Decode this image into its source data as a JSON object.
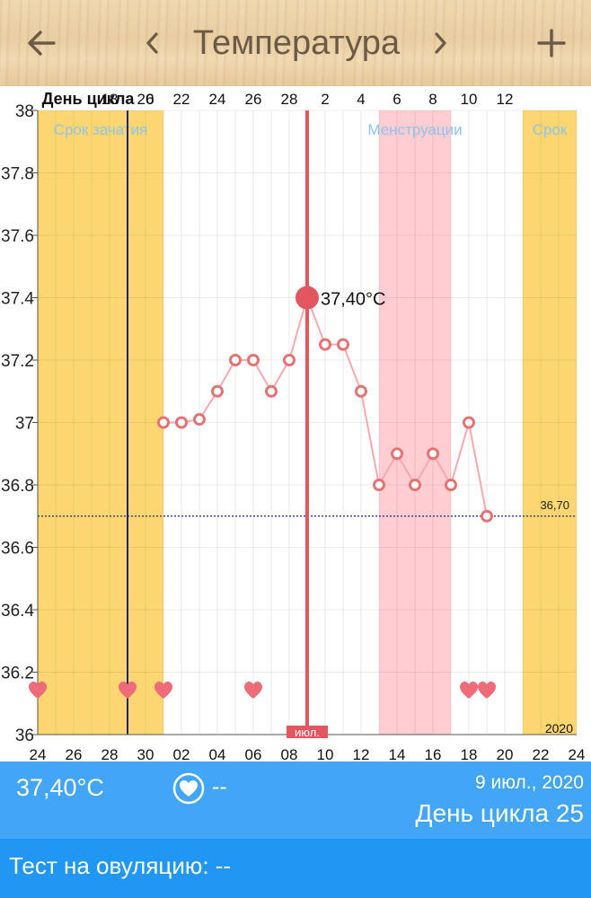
{
  "header": {
    "title": "Температура",
    "back_icon": "arrow-left-icon",
    "prev_icon": "chevron-left-icon",
    "next_icon": "chevron-right-icon",
    "add_icon": "plus-icon"
  },
  "colors": {
    "fertile": "#fcd670",
    "menstruation": "#ffcdd2",
    "line": "#f8a9b0",
    "point": "#e57373",
    "selected": "#e25660",
    "ovulation_line": "#1a237e",
    "coverline": "#1a237e",
    "info_bar": "#42a5f5",
    "test_bar": "#2196f3"
  },
  "chart_data": {
    "type": "line",
    "x_start_date": "2020-06-24",
    "cycle_day_label": "День цикла",
    "cycle_day_ticks": [
      "6",
      "18",
      "20",
      "22",
      "24",
      "26",
      "28",
      "2",
      "4",
      "6",
      "8",
      "10",
      "12"
    ],
    "date_ticks": [
      "24",
      "26",
      "28",
      "30",
      "02",
      "04",
      "06",
      "08",
      "10",
      "12",
      "14",
      "16",
      "18",
      "20",
      "22",
      "24"
    ],
    "month_label": "июл.",
    "year_label": "2020",
    "ylim": [
      36,
      38
    ],
    "y_ticks": [
      "36",
      "36.2",
      "36.4",
      "36.6",
      "36.8",
      "37",
      "37.2",
      "37.4",
      "37.6",
      "37.8",
      "38"
    ],
    "series": [
      {
        "x": [
          "2020-07-01",
          "2020-07-02",
          "2020-07-03",
          "2020-07-04",
          "2020-07-05",
          "2020-07-06",
          "2020-07-07",
          "2020-07-08",
          "2020-07-09",
          "2020-07-10",
          "2020-07-11",
          "2020-07-12",
          "2020-07-13",
          "2020-07-14",
          "2020-07-15",
          "2020-07-16",
          "2020-07-17",
          "2020-07-18",
          "2020-07-19"
        ],
        "values": [
          37.0,
          37.0,
          37.01,
          37.1,
          37.2,
          37.2,
          37.1,
          37.2,
          37.4,
          37.25,
          37.25,
          37.1,
          36.8,
          36.9,
          36.8,
          36.9,
          36.8,
          37.0,
          36.7
        ]
      }
    ],
    "selected": {
      "x": "2020-07-09",
      "value": 37.4,
      "label": "37,40°C"
    },
    "coverline": {
      "value": 36.7,
      "label": "36,70"
    },
    "ovulation_day": "2020-06-29",
    "bands": [
      {
        "type": "fertile",
        "from": "2020-06-24",
        "to": "2020-07-01",
        "label": "Срок зачатия"
      },
      {
        "type": "menstruation",
        "from": "2020-07-13",
        "to": "2020-07-17",
        "label": "Менструации"
      },
      {
        "type": "fertile",
        "from": "2020-07-21",
        "to": "2020-07-24",
        "label": "Срок"
      }
    ],
    "hearts": [
      "2020-06-24",
      "2020-06-29",
      "2020-06-31",
      "2020-07-06",
      "2020-07-18",
      "2020-07-19"
    ],
    "grid": true
  },
  "info": {
    "temperature": "37,40°C",
    "intercourse_icon": "heart-icon",
    "intercourse_value": "--",
    "date": "9 июл., 2020",
    "cycle_day": "День цикла 25"
  },
  "ovulation_test": {
    "label": "Тест на овуляцию: --"
  }
}
